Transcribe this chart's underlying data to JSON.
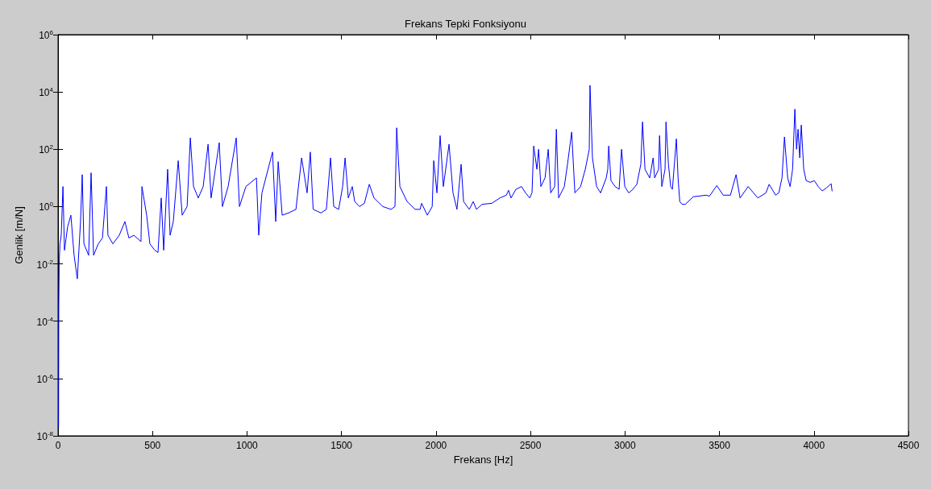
{
  "chart_data": {
    "type": "line",
    "title": "Frekans Tepki Fonksiyonu",
    "xlabel": "Frekans [Hz]",
    "ylabel": "Genlik [m/N]",
    "log": "y",
    "grid": false,
    "legend": false,
    "marker": "none",
    "line_style": "solid",
    "xlim": [
      0,
      4500
    ],
    "xticks": [
      0,
      500,
      1000,
      1500,
      2000,
      2500,
      3000,
      3500,
      4000,
      4500
    ],
    "ylim": [
      1e-08,
      1000000.0
    ],
    "yticks": [
      {
        "value": 1e-08,
        "label": "10$^{-8}$"
      },
      {
        "value": 1e-06,
        "label": "10$^{-6}$"
      },
      {
        "value": 0.0001,
        "label": "10$^{-4}$"
      },
      {
        "value": 0.01,
        "label": "10$^{-2}$"
      },
      {
        "value": 1,
        "label": "10$^{0}$"
      },
      {
        "value": 100,
        "label": "10$^{2}$"
      },
      {
        "value": 10000,
        "label": "10$^{4}$"
      },
      {
        "value": 1000000,
        "label": "10$^{6}$"
      }
    ],
    "series": [
      {
        "color": "#0000ff",
        "x": [
          3,
          4,
          6,
          10,
          17,
          26,
          34,
          51,
          68,
          85,
          102,
          119,
          128,
          137,
          162,
          175,
          188,
          213,
          235,
          256,
          264,
          290,
          324,
          354,
          375,
          401,
          439,
          444,
          469,
          486,
          512,
          529,
          546,
          559,
          580,
          593,
          610,
          636,
          657,
          683,
          700,
          717,
          742,
          768,
          794,
          810,
          853,
          870,
          900,
          943,
          960,
          994,
          1050,
          1062,
          1079,
          1135,
          1152,
          1165,
          1186,
          1220,
          1259,
          1289,
          1318,
          1335,
          1350,
          1391,
          1420,
          1442,
          1459,
          1485,
          1506,
          1519,
          1536,
          1557,
          1570,
          1595,
          1621,
          1647,
          1672,
          1719,
          1762,
          1783,
          1792,
          1809,
          1847,
          1890,
          1916,
          1924,
          1954,
          1980,
          1988,
          2005,
          2022,
          2039,
          2069,
          2090,
          2111,
          2133,
          2146,
          2176,
          2197,
          2214,
          2244,
          2295,
          2338,
          2372,
          2384,
          2397,
          2423,
          2453,
          2474,
          2496,
          2508,
          2517,
          2534,
          2543,
          2555,
          2577,
          2594,
          2607,
          2628,
          2637,
          2649,
          2679,
          2696,
          2718,
          2735,
          2765,
          2790,
          2811,
          2815,
          2828,
          2850,
          2871,
          2901,
          2909,
          2914,
          2926,
          2948,
          2969,
          2982,
          2999,
          3020,
          3042,
          3063,
          3084,
          3093,
          3106,
          3131,
          3149,
          3157,
          3178,
          3183,
          3195,
          3212,
          3217,
          3230,
          3242,
          3251,
          3272,
          3281,
          3290,
          3302,
          3319,
          3362,
          3430,
          3447,
          3486,
          3520,
          3558,
          3588,
          3609,
          3652,
          3703,
          3746,
          3763,
          3797,
          3814,
          3831,
          3844,
          3861,
          3874,
          3887,
          3899,
          3908,
          3916,
          3925,
          3933,
          3946,
          3959,
          3980,
          4002,
          4023,
          4044,
          4066,
          4091,
          4096
        ],
        "values": [
          2e-08,
          0.0003,
          0.01,
          0.05,
          0.1,
          5,
          0.03,
          0.2,
          0.5,
          0.02,
          0.003,
          0.3,
          13,
          0.05,
          0.02,
          15,
          0.02,
          0.05,
          0.08,
          5,
          0.1,
          0.05,
          0.1,
          0.3,
          0.08,
          0.1,
          0.06,
          5,
          0.5,
          0.05,
          0.03,
          0.025,
          2,
          0.03,
          20,
          0.1,
          0.3,
          40,
          0.5,
          1,
          250,
          5,
          2,
          5,
          150,
          2,
          170,
          1,
          5,
          250,
          1,
          5,
          10,
          0.1,
          3,
          80,
          0.3,
          37,
          0.5,
          0.6,
          0.8,
          50,
          3,
          80,
          0.8,
          0.6,
          0.8,
          50,
          1,
          0.8,
          5,
          50,
          2,
          5,
          1.5,
          1,
          1.3,
          6,
          2,
          1,
          0.8,
          1,
          560,
          5,
          1.5,
          0.8,
          0.8,
          1.3,
          0.5,
          1,
          40,
          3,
          300,
          5,
          150,
          3,
          0.8,
          30,
          1.5,
          0.8,
          1.5,
          0.8,
          1.2,
          1.3,
          2,
          2.5,
          3.7,
          2,
          4,
          5,
          3,
          2,
          3,
          130,
          20,
          100,
          5,
          10,
          100,
          3,
          5,
          500,
          2,
          5,
          30,
          400,
          3,
          5,
          20,
          100,
          17000,
          50,
          5,
          3,
          10,
          20,
          130,
          8,
          5,
          4,
          100,
          5,
          3,
          4,
          6,
          30,
          900,
          20,
          10,
          50,
          10,
          20,
          300,
          5,
          20,
          900,
          30,
          5,
          4,
          230,
          10,
          1.5,
          1.2,
          1.2,
          2.2,
          2.5,
          2.3,
          5.4,
          2.5,
          2.5,
          13,
          2,
          5,
          2,
          3,
          6,
          2.5,
          3,
          10,
          270,
          10,
          5,
          20,
          2500,
          100,
          500,
          50,
          700,
          20,
          8,
          7,
          8,
          5,
          3.5,
          4.5,
          6.3,
          3.5
        ]
      }
    ]
  }
}
